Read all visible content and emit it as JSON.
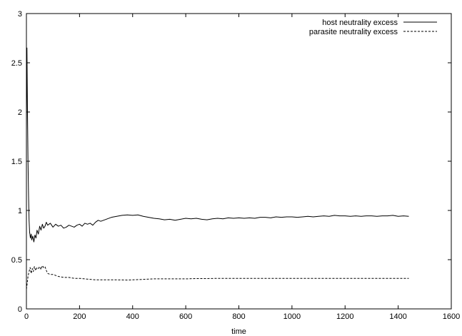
{
  "chart_data": {
    "type": "line",
    "title": "",
    "xlabel": "time",
    "ylabel": "",
    "xlim": [
      0,
      1600
    ],
    "ylim": [
      0,
      3
    ],
    "xticks": [
      0,
      200,
      400,
      600,
      800,
      1000,
      1200,
      1400,
      1600
    ],
    "yticks": [
      0,
      0.5,
      1,
      1.5,
      2,
      2.5,
      3
    ],
    "xtick_labels": [
      "0",
      "200",
      "400",
      "600",
      "800",
      "1000",
      "1200",
      "1400",
      "1600"
    ],
    "ytick_labels": [
      "0",
      "0.5",
      "1",
      "1.5",
      "2",
      "2.5",
      "3"
    ],
    "grid": false,
    "legend_position": "top-right",
    "series": [
      {
        "name": "host neutrality excess",
        "style": "solid",
        "points": [
          [
            0,
            1.8
          ],
          [
            2,
            2.65
          ],
          [
            4,
            2.0
          ],
          [
            6,
            1.5
          ],
          [
            8,
            1.15
          ],
          [
            10,
            0.9
          ],
          [
            12,
            0.78
          ],
          [
            15,
            0.72
          ],
          [
            18,
            0.76
          ],
          [
            20,
            0.7
          ],
          [
            24,
            0.74
          ],
          [
            28,
            0.68
          ],
          [
            32,
            0.75
          ],
          [
            36,
            0.72
          ],
          [
            40,
            0.8
          ],
          [
            45,
            0.76
          ],
          [
            50,
            0.84
          ],
          [
            55,
            0.8
          ],
          [
            60,
            0.86
          ],
          [
            65,
            0.82
          ],
          [
            70,
            0.84
          ],
          [
            75,
            0.88
          ],
          [
            80,
            0.85
          ],
          [
            90,
            0.87
          ],
          [
            100,
            0.83
          ],
          [
            110,
            0.86
          ],
          [
            120,
            0.84
          ],
          [
            130,
            0.85
          ],
          [
            140,
            0.82
          ],
          [
            150,
            0.83
          ],
          [
            160,
            0.85
          ],
          [
            170,
            0.84
          ],
          [
            180,
            0.83
          ],
          [
            190,
            0.85
          ],
          [
            200,
            0.86
          ],
          [
            210,
            0.84
          ],
          [
            220,
            0.87
          ],
          [
            230,
            0.86
          ],
          [
            240,
            0.87
          ],
          [
            250,
            0.85
          ],
          [
            260,
            0.88
          ],
          [
            270,
            0.9
          ],
          [
            280,
            0.89
          ],
          [
            300,
            0.91
          ],
          [
            320,
            0.93
          ],
          [
            340,
            0.94
          ],
          [
            360,
            0.95
          ],
          [
            380,
            0.955
          ],
          [
            400,
            0.95
          ],
          [
            420,
            0.955
          ],
          [
            440,
            0.94
          ],
          [
            460,
            0.93
          ],
          [
            480,
            0.92
          ],
          [
            500,
            0.915
          ],
          [
            520,
            0.905
          ],
          [
            540,
            0.91
          ],
          [
            560,
            0.9
          ],
          [
            580,
            0.91
          ],
          [
            600,
            0.92
          ],
          [
            620,
            0.915
          ],
          [
            640,
            0.92
          ],
          [
            660,
            0.91
          ],
          [
            680,
            0.905
          ],
          [
            700,
            0.915
          ],
          [
            720,
            0.92
          ],
          [
            740,
            0.915
          ],
          [
            760,
            0.925
          ],
          [
            780,
            0.92
          ],
          [
            800,
            0.925
          ],
          [
            820,
            0.92
          ],
          [
            840,
            0.925
          ],
          [
            860,
            0.92
          ],
          [
            880,
            0.93
          ],
          [
            900,
            0.93
          ],
          [
            920,
            0.925
          ],
          [
            940,
            0.935
          ],
          [
            960,
            0.93
          ],
          [
            980,
            0.935
          ],
          [
            1000,
            0.935
          ],
          [
            1020,
            0.93
          ],
          [
            1040,
            0.935
          ],
          [
            1060,
            0.94
          ],
          [
            1080,
            0.935
          ],
          [
            1100,
            0.94
          ],
          [
            1120,
            0.945
          ],
          [
            1140,
            0.94
          ],
          [
            1160,
            0.95
          ],
          [
            1180,
            0.945
          ],
          [
            1200,
            0.945
          ],
          [
            1220,
            0.94
          ],
          [
            1240,
            0.945
          ],
          [
            1260,
            0.94
          ],
          [
            1280,
            0.945
          ],
          [
            1300,
            0.945
          ],
          [
            1320,
            0.94
          ],
          [
            1340,
            0.945
          ],
          [
            1360,
            0.945
          ],
          [
            1380,
            0.95
          ],
          [
            1400,
            0.94
          ],
          [
            1420,
            0.945
          ],
          [
            1440,
            0.94
          ]
        ]
      },
      {
        "name": "parasite neutrality excess",
        "style": "dashed",
        "points": [
          [
            0,
            0.2
          ],
          [
            3,
            0.26
          ],
          [
            6,
            0.33
          ],
          [
            10,
            0.38
          ],
          [
            14,
            0.42
          ],
          [
            18,
            0.36
          ],
          [
            22,
            0.41
          ],
          [
            26,
            0.38
          ],
          [
            30,
            0.43
          ],
          [
            35,
            0.39
          ],
          [
            40,
            0.42
          ],
          [
            45,
            0.41
          ],
          [
            50,
            0.43
          ],
          [
            55,
            0.4
          ],
          [
            60,
            0.44
          ],
          [
            65,
            0.42
          ],
          [
            70,
            0.43
          ],
          [
            75,
            0.39
          ],
          [
            80,
            0.36
          ],
          [
            90,
            0.35
          ],
          [
            100,
            0.35
          ],
          [
            110,
            0.34
          ],
          [
            120,
            0.33
          ],
          [
            140,
            0.32
          ],
          [
            160,
            0.32
          ],
          [
            180,
            0.31
          ],
          [
            200,
            0.31
          ],
          [
            220,
            0.305
          ],
          [
            240,
            0.3
          ],
          [
            260,
            0.295
          ],
          [
            280,
            0.295
          ],
          [
            300,
            0.295
          ],
          [
            340,
            0.295
          ],
          [
            380,
            0.293
          ],
          [
            400,
            0.295
          ],
          [
            440,
            0.3
          ],
          [
            480,
            0.305
          ],
          [
            520,
            0.305
          ],
          [
            560,
            0.305
          ],
          [
            600,
            0.305
          ],
          [
            640,
            0.308
          ],
          [
            680,
            0.308
          ],
          [
            720,
            0.31
          ],
          [
            760,
            0.31
          ],
          [
            800,
            0.31
          ],
          [
            840,
            0.31
          ],
          [
            880,
            0.31
          ],
          [
            920,
            0.31
          ],
          [
            960,
            0.31
          ],
          [
            1000,
            0.31
          ],
          [
            1040,
            0.31
          ],
          [
            1080,
            0.31
          ],
          [
            1120,
            0.31
          ],
          [
            1160,
            0.31
          ],
          [
            1200,
            0.31
          ],
          [
            1240,
            0.31
          ],
          [
            1280,
            0.31
          ],
          [
            1320,
            0.31
          ],
          [
            1360,
            0.31
          ],
          [
            1400,
            0.31
          ],
          [
            1440,
            0.31
          ]
        ]
      }
    ]
  }
}
